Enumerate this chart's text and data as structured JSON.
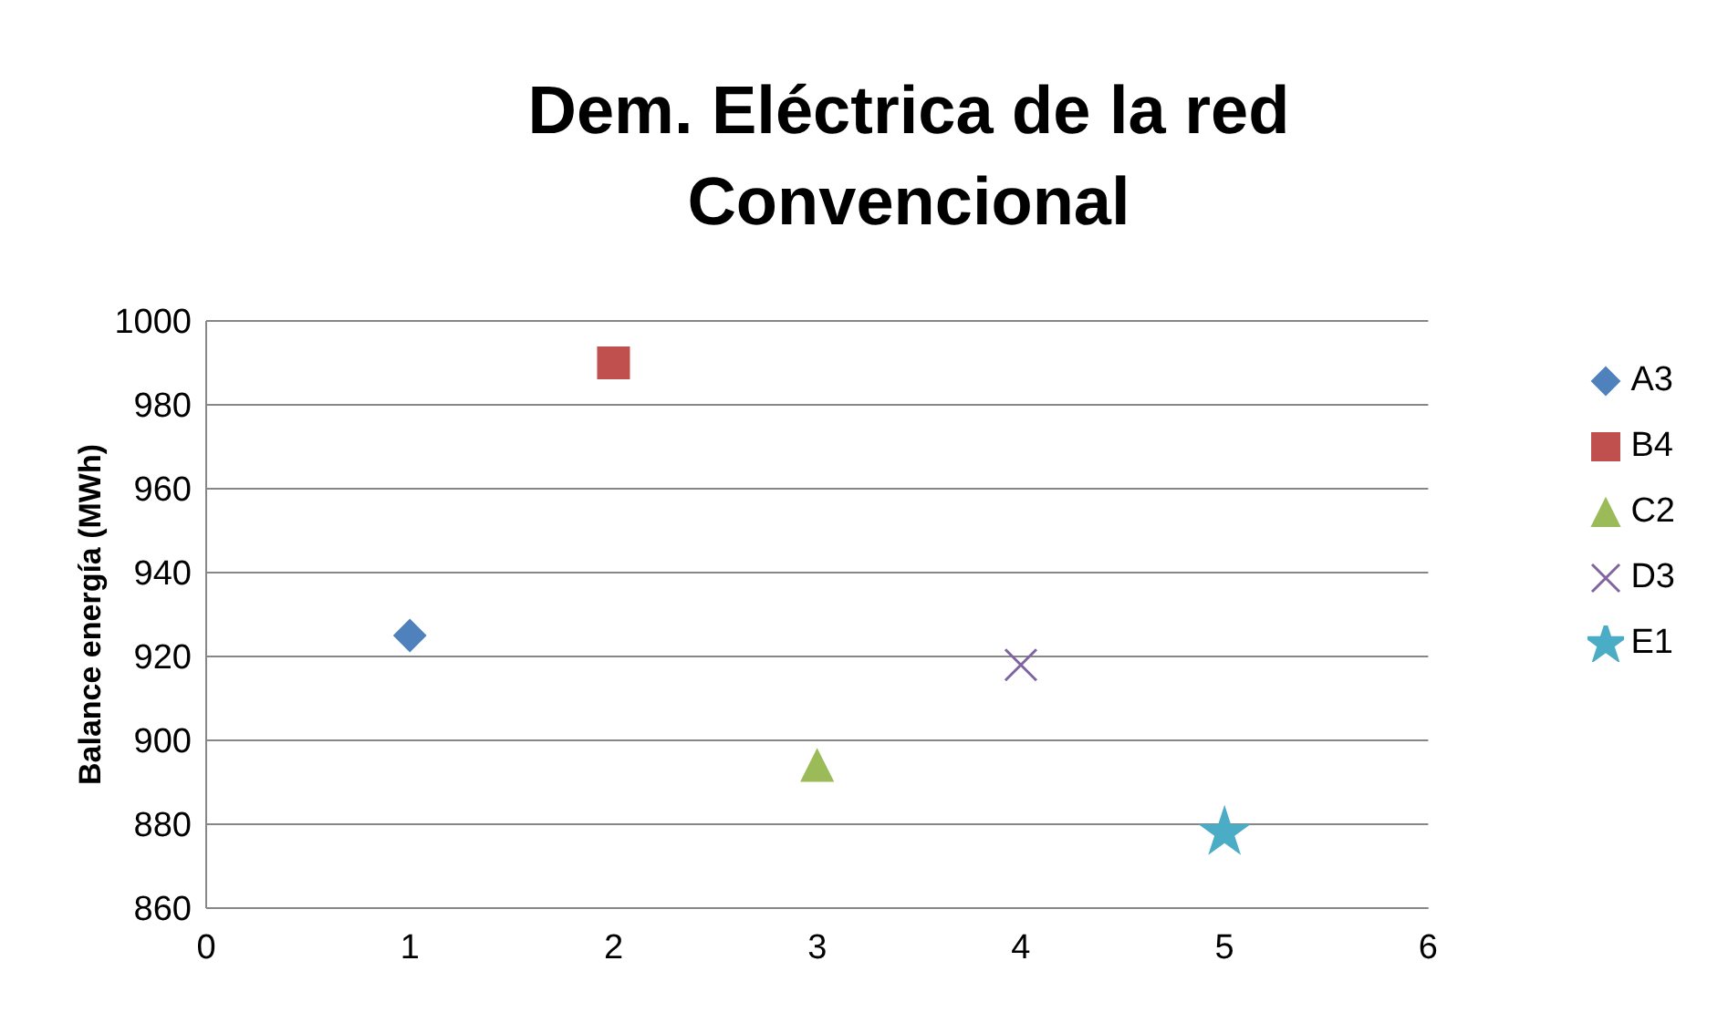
{
  "chart_data": {
    "type": "scatter",
    "title": "Dem. Eléctrica de la red Convencional",
    "ylabel": "Balance energía (MWh)",
    "xlim": [
      0,
      6
    ],
    "xticks": [
      0,
      1,
      2,
      3,
      4,
      5,
      6
    ],
    "ylim": [
      860,
      1000
    ],
    "yticks": [
      860,
      880,
      900,
      920,
      940,
      960,
      980,
      1000
    ],
    "grid": "y",
    "legend": "right",
    "series": [
      {
        "name": "A3",
        "color": "#4f81bd",
        "marker": "diamond",
        "x": [
          1
        ],
        "values": [
          925
        ]
      },
      {
        "name": "B4",
        "color": "#c0504d",
        "marker": "square",
        "x": [
          2
        ],
        "values": [
          990
        ]
      },
      {
        "name": "C2",
        "color": "#9bbb59",
        "marker": "triangle",
        "x": [
          3
        ],
        "values": [
          894
        ]
      },
      {
        "name": "D3",
        "color": "#8064a2",
        "marker": "cross",
        "x": [
          4
        ],
        "values": [
          918
        ]
      },
      {
        "name": "E1",
        "color": "#4bacc6",
        "marker": "star",
        "x": [
          5
        ],
        "values": [
          878
        ]
      }
    ]
  }
}
